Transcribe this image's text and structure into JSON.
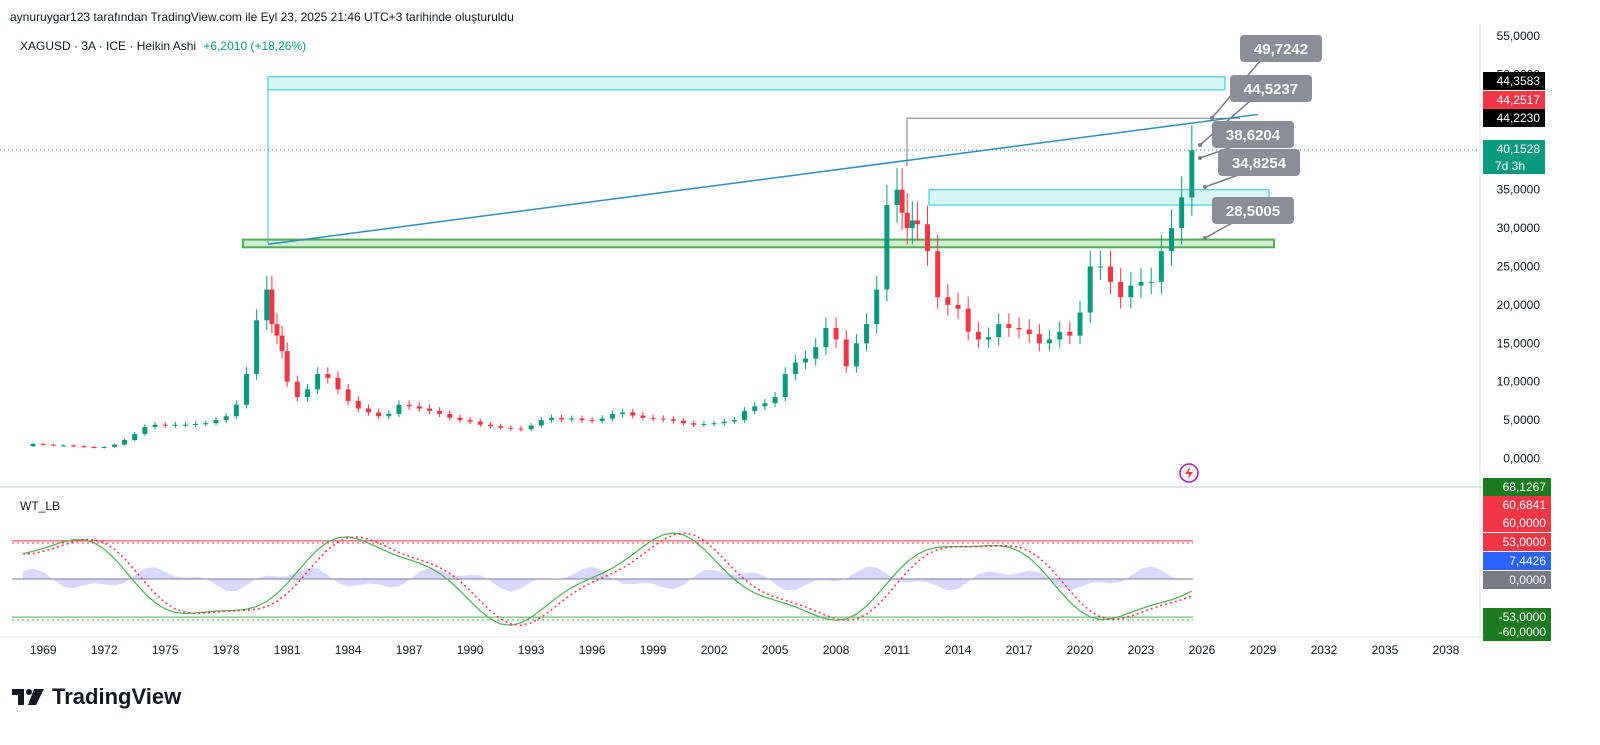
{
  "header": {
    "attribution": "aynuruygar123 tarafından TradingView.com ile Eyl 23, 2025 21:46 UTC+3 tarihinde oluşturuldu"
  },
  "symbol": {
    "name": "XAGUSD · 3A · ICE · Heikin Ashi",
    "change": "+6,2010 (+18,26%)"
  },
  "indicator": {
    "name": "WT_LB"
  },
  "brand": {
    "name": "TradingView"
  },
  "price_axis": {
    "ticks": [
      "55,0000",
      "50,0000",
      "45,0000",
      "40,0000",
      "35,0000",
      "30,0000",
      "25,0000",
      "20,0000",
      "15,0000",
      "10,0000",
      "5,0000",
      "0,0000"
    ],
    "tick_values": [
      55,
      50,
      45,
      40,
      35,
      30,
      25,
      20,
      15,
      10,
      5,
      0
    ],
    "tags": [
      {
        "label": "44,3583",
        "value": 44.3583,
        "color": "#000000"
      },
      {
        "label": "44,2517",
        "value": 44.2517,
        "color": "#f23645"
      },
      {
        "label": "44,2230",
        "value": 44.223,
        "color": "#000000"
      },
      {
        "label": "40,1528",
        "value": 40.1528,
        "color": "#089981"
      }
    ],
    "countdown": "7d 3h"
  },
  "osc_axis": {
    "tags": [
      {
        "label": "60,6841",
        "value": 60.6841,
        "color": "#f23645"
      },
      {
        "label": "60,0000",
        "value": 60,
        "color": "#f23645"
      },
      {
        "label": "53,0000",
        "value": 53,
        "color": "#f23645"
      },
      {
        "label": "7,4426",
        "value": 7.4426,
        "color": "#2962ff"
      },
      {
        "label": "0,0000",
        "value": 0,
        "color": "#787b86"
      },
      {
        "label": "-53,0000",
        "value": -53,
        "color": "#1b7b1e"
      },
      {
        "label": "-60,0000",
        "value": -60,
        "color": "#1b7b1e"
      },
      {
        "label": "68,1267",
        "value": 68.1267,
        "color": "#1b7b1e"
      }
    ]
  },
  "time_axis": {
    "ticks": [
      "1969",
      "1972",
      "1975",
      "1978",
      "1981",
      "1984",
      "1987",
      "1990",
      "1993",
      "1996",
      "1999",
      "2002",
      "2005",
      "2008",
      "2011",
      "2014",
      "2017",
      "2020",
      "2023",
      "2026",
      "2029",
      "2032",
      "2035",
      "2038"
    ]
  },
  "callouts": [
    {
      "label": "49,7242",
      "value": 49.7242
    },
    {
      "label": "44,5237",
      "value": 44.5237
    },
    {
      "label": "38,6204",
      "value": 38.6204
    },
    {
      "label": "34,8254",
      "value": 34.8254
    },
    {
      "label": "28,5005",
      "value": 28.5005
    }
  ],
  "colors": {
    "up": "#089981",
    "down": "#f23645",
    "zone_blue": "#26c6da",
    "zone_green": "#4caf50",
    "trend": "#2a8fbd",
    "wt1": "#4caf50",
    "wt2": "#f23645",
    "fill": "#8c8cff"
  },
  "chart_data": {
    "type": "candlestick",
    "series": [
      {
        "name": "XAGUSD",
        "x_dates": [
          1968.5,
          1969.0,
          1969.5,
          1970.0,
          1970.5,
          1971.0,
          1971.5,
          1972.0,
          1972.5,
          1973.0,
          1973.5,
          1974.0,
          1974.5,
          1975.0,
          1975.5,
          1976.0,
          1976.5,
          1977.0,
          1977.5,
          1978.0,
          1978.5,
          1979.0,
          1979.5,
          1980.0,
          1980.25,
          1980.5,
          1980.75,
          1981.0,
          1981.5,
          1982.0,
          1982.5,
          1983.0,
          1983.5,
          1984.0,
          1984.5,
          1985.0,
          1985.5,
          1986.0,
          1986.5,
          1987.0,
          1987.5,
          1988.0,
          1988.5,
          1989.0,
          1989.5,
          1990.0,
          1990.5,
          1991.0,
          1991.5,
          1992.0,
          1992.5,
          1993.0,
          1993.5,
          1994.0,
          1994.5,
          1995.0,
          1995.5,
          1996.0,
          1996.5,
          1997.0,
          1997.5,
          1998.0,
          1998.5,
          1999.0,
          1999.5,
          2000.0,
          2000.5,
          2001.0,
          2001.5,
          2002.0,
          2002.5,
          2003.0,
          2003.5,
          2004.0,
          2004.5,
          2005.0,
          2005.5,
          2006.0,
          2006.5,
          2007.0,
          2007.5,
          2008.0,
          2008.5,
          2009.0,
          2009.5,
          2010.0,
          2010.5,
          2011.0,
          2011.25,
          2011.5,
          2011.75,
          2012.0,
          2012.5,
          2013.0,
          2013.5,
          2014.0,
          2014.5,
          2015.0,
          2015.5,
          2016.0,
          2016.5,
          2017.0,
          2017.5,
          2018.0,
          2018.5,
          2019.0,
          2019.5,
          2020.0,
          2020.5,
          2021.0,
          2021.5,
          2022.0,
          2022.5,
          2023.0,
          2023.5,
          2024.0,
          2024.5,
          2025.0,
          2025.5
        ],
        "open": [
          1.6,
          1.9,
          1.8,
          1.7,
          1.7,
          1.6,
          1.5,
          1.4,
          1.5,
          1.8,
          2.4,
          3.2,
          4.1,
          4.4,
          4.3,
          4.4,
          4.4,
          4.5,
          4.6,
          5.0,
          5.5,
          7.0,
          11.0,
          18.0,
          22.0,
          17.5,
          16.0,
          14.0,
          10.0,
          8.0,
          9.0,
          11.0,
          10.5,
          9.0,
          7.5,
          6.5,
          6.0,
          5.5,
          5.8,
          7.0,
          6.8,
          6.5,
          6.2,
          5.8,
          5.3,
          5.0,
          4.8,
          4.4,
          4.2,
          4.0,
          3.9,
          3.8,
          4.3,
          5.0,
          5.3,
          5.1,
          5.2,
          5.0,
          4.9,
          5.2,
          5.8,
          6.0,
          5.6,
          5.3,
          5.2,
          5.1,
          4.9,
          4.6,
          4.4,
          4.5,
          4.6,
          4.8,
          5.0,
          6.2,
          6.8,
          7.2,
          8.0,
          11.0,
          12.5,
          13.0,
          14.5,
          17.0,
          15.5,
          12.0,
          15.0,
          17.5,
          22.0,
          33.0,
          35.0,
          32.0,
          30.0,
          31.0,
          30.5,
          27.0,
          21.0,
          20.0,
          19.5,
          16.5,
          15.5,
          15.8,
          17.5,
          17.0,
          16.8,
          16.2,
          15.0,
          15.5,
          16.5,
          16.0,
          19.0,
          25.0,
          25.0,
          23.0,
          21.0,
          22.5,
          23.0,
          23.0,
          27.0,
          30.0,
          34.0
        ],
        "close": [
          1.9,
          1.8,
          1.7,
          1.7,
          1.6,
          1.5,
          1.4,
          1.5,
          1.8,
          2.4,
          3.2,
          4.1,
          4.4,
          4.3,
          4.4,
          4.4,
          4.5,
          4.6,
          5.0,
          5.5,
          7.0,
          11.0,
          18.0,
          22.0,
          17.5,
          16.0,
          14.0,
          10.0,
          8.0,
          9.0,
          11.0,
          10.5,
          9.0,
          7.5,
          6.5,
          6.0,
          5.5,
          5.8,
          7.0,
          6.8,
          6.5,
          6.2,
          5.8,
          5.3,
          5.0,
          4.8,
          4.4,
          4.2,
          4.0,
          3.9,
          3.8,
          4.3,
          5.0,
          5.3,
          5.1,
          5.2,
          5.0,
          4.9,
          5.2,
          5.8,
          6.0,
          5.6,
          5.3,
          5.2,
          5.1,
          4.9,
          4.6,
          4.4,
          4.5,
          4.6,
          4.8,
          5.0,
          6.2,
          6.8,
          7.2,
          8.0,
          11.0,
          12.5,
          13.0,
          14.5,
          17.0,
          15.5,
          12.0,
          15.0,
          17.5,
          22.0,
          33.0,
          35.0,
          32.0,
          30.0,
          31.0,
          30.5,
          27.0,
          21.0,
          20.0,
          19.5,
          16.5,
          15.5,
          15.8,
          17.5,
          17.0,
          16.8,
          16.2,
          15.0,
          15.5,
          16.5,
          16.0,
          19.0,
          25.0,
          25.0,
          23.0,
          21.0,
          22.5,
          23.0,
          23.0,
          27.0,
          30.0,
          34.0,
          40.15
        ]
      }
    ],
    "y_range": [
      0,
      55
    ],
    "x_range": [
      1968,
      2040
    ]
  }
}
